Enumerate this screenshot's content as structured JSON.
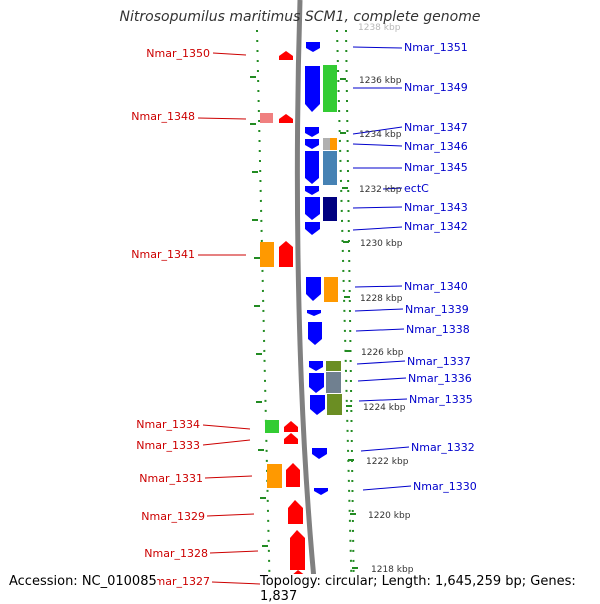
{
  "title": "Nitrosopumilus maritimus SCM1, complete genome",
  "accession": "Accession: NC_010085",
  "topology": "Topology: circular; Length: 1,645,259 bp; Genes: 1,837",
  "colors": {
    "forward_arrow": "#ff0000",
    "reverse_arrow": "#0000ff",
    "forward_label": "#cc0000",
    "reverse_label": "#0000cc",
    "backbone": "#808080",
    "dotted_ring": "#228b22"
  },
  "scale_ticks": [
    "1236 kbp",
    "1234 kbp",
    "1232 kbp",
    "1230 kbp",
    "1228 kbp",
    "1226 kbp",
    "1224 kbp",
    "1222 kbp",
    "1220 kbp",
    "1218 kbp"
  ],
  "scale_partial": "1238 kbp",
  "forward_genes": [
    "Nmar_1350",
    "Nmar_1348",
    "Nmar_1341",
    "Nmar_1334",
    "Nmar_1333",
    "Nmar_1331",
    "Nmar_1329",
    "Nmar_1328",
    "Nmar_1327"
  ],
  "reverse_genes": [
    "Nmar_1351",
    "Nmar_1349",
    "Nmar_1347",
    "Nmar_1346",
    "Nmar_1345",
    "ectC",
    "Nmar_1343",
    "Nmar_1342",
    "Nmar_1340",
    "Nmar_1339",
    "Nmar_1338",
    "Nmar_1337",
    "Nmar_1336",
    "Nmar_1335",
    "Nmar_1332",
    "Nmar_1330"
  ]
}
